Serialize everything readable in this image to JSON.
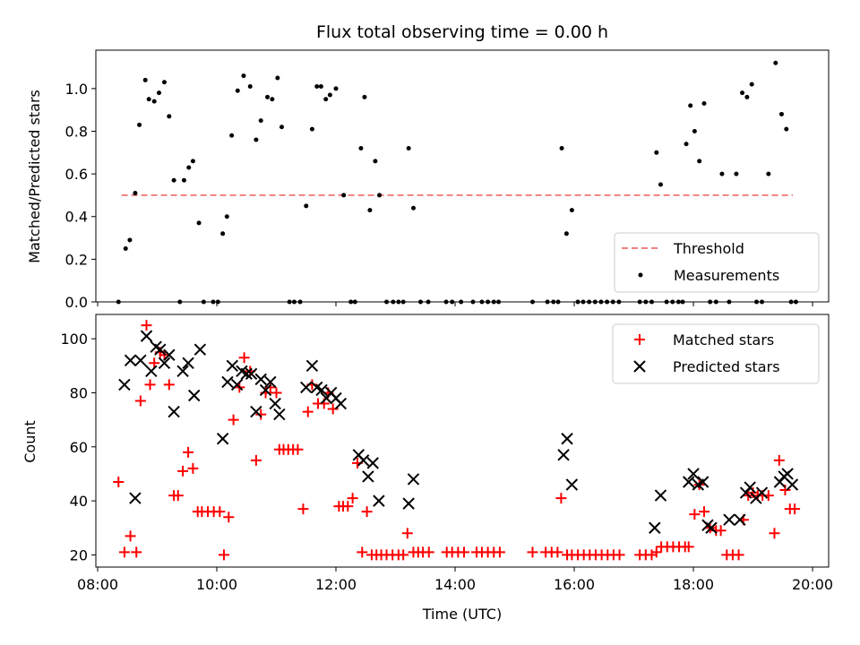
{
  "chart_data": [
    {
      "type": "scatter",
      "title": "Flux total observing time = 0.00 h",
      "ylabel": "Matched/Predicted stars",
      "xlabel": "",
      "ylim": [
        0,
        1.18
      ],
      "yticks": [
        0.0,
        0.2,
        0.4,
        0.6,
        0.8,
        1.0
      ],
      "yticklabels": [
        "0.0",
        "0.2",
        "0.4",
        "0.6",
        "0.8",
        "1.0"
      ],
      "xlim": [
        7.97,
        20.27
      ],
      "grid": false,
      "legend_position": "lower right",
      "legend": [
        "Threshold",
        "Measurements"
      ],
      "threshold": {
        "name": "Threshold",
        "y": 0.5,
        "x": [
          8.4,
          19.67
        ],
        "color": "#f08080",
        "style": "dashed"
      },
      "series": [
        {
          "name": "Measurements",
          "color": "#000000",
          "marker": "dot",
          "x": [
            8.35,
            8.47,
            8.54,
            8.63,
            8.7,
            8.8,
            8.86,
            8.95,
            9.03,
            9.12,
            9.2,
            9.28,
            9.38,
            9.45,
            9.53,
            9.6,
            9.7,
            9.78,
            9.94,
            10.02,
            10.1,
            10.17,
            10.25,
            10.35,
            10.45,
            10.56,
            10.66,
            10.74,
            10.85,
            10.93,
            11.02,
            11.09,
            11.22,
            11.3,
            11.4,
            11.5,
            11.6,
            11.68,
            11.75,
            11.83,
            11.9,
            12.0,
            12.13,
            12.25,
            12.32,
            12.42,
            12.48,
            12.57,
            12.66,
            12.73,
            12.85,
            12.96,
            13.05,
            13.13,
            13.22,
            13.3,
            13.42,
            13.55,
            13.85,
            13.95,
            14.1,
            14.3,
            14.45,
            14.55,
            14.65,
            14.73,
            15.3,
            15.55,
            15.65,
            15.73,
            15.79,
            15.87,
            15.96,
            16.06,
            16.15,
            16.25,
            16.35,
            16.45,
            16.55,
            16.65,
            16.75,
            17.1,
            17.2,
            17.3,
            17.38,
            17.45,
            17.55,
            17.65,
            17.75,
            17.82,
            17.88,
            17.95,
            18.02,
            18.1,
            18.18,
            18.28,
            18.38,
            18.48,
            18.6,
            18.72,
            18.82,
            18.9,
            18.98,
            19.06,
            19.15,
            19.26,
            19.38,
            19.48,
            19.56,
            19.64,
            19.72
          ],
          "y": [
            0.0,
            0.25,
            0.29,
            0.51,
            0.83,
            1.04,
            0.95,
            0.94,
            0.98,
            1.03,
            0.87,
            0.57,
            0.0,
            0.57,
            0.63,
            0.66,
            0.37,
            0.0,
            0.0,
            0.0,
            0.32,
            0.4,
            0.78,
            0.99,
            1.06,
            1.01,
            0.76,
            0.85,
            0.96,
            0.95,
            1.05,
            0.82,
            0.0,
            0.0,
            0.0,
            0.45,
            0.81,
            1.01,
            1.01,
            0.95,
            0.97,
            1.0,
            0.5,
            0.0,
            0.0,
            0.72,
            0.96,
            0.43,
            0.66,
            0.5,
            0.0,
            0.0,
            0.0,
            0.0,
            0.72,
            0.44,
            0.0,
            0.0,
            0.0,
            0.0,
            0.0,
            0.0,
            0.0,
            0.0,
            0.0,
            0.0,
            0.0,
            0.0,
            0.0,
            0.0,
            0.72,
            0.32,
            0.43,
            0.0,
            0.0,
            0.0,
            0.0,
            0.0,
            0.0,
            0.0,
            0.0,
            0.0,
            0.0,
            0.0,
            0.7,
            0.55,
            0.0,
            0.0,
            0.0,
            0.0,
            0.74,
            0.92,
            0.8,
            0.66,
            0.93,
            0.0,
            0.0,
            0.6,
            0.0,
            0.6,
            0.98,
            0.96,
            1.02,
            0.0,
            0.0,
            0.6,
            1.12,
            0.88,
            0.81,
            0.0,
            0.0
          ]
        }
      ]
    },
    {
      "type": "scatter",
      "title": "",
      "xlabel": "Time (UTC)",
      "ylabel": "Count",
      "ylim": [
        15.5,
        109
      ],
      "yticks": [
        20,
        40,
        60,
        80,
        100
      ],
      "yticklabels": [
        "20",
        "40",
        "60",
        "80",
        "100"
      ],
      "xlim": [
        7.97,
        20.27
      ],
      "xticks": [
        8,
        10,
        12,
        14,
        16,
        18,
        20
      ],
      "xticklabels": [
        "08:00",
        "10:00",
        "12:00",
        "14:00",
        "16:00",
        "18:00",
        "20:00"
      ],
      "grid": false,
      "legend_position": "top right",
      "legend": [
        "Matched stars",
        "Predicted stars"
      ],
      "series": [
        {
          "name": "Matched stars",
          "color": "#ff0000",
          "marker": "plus",
          "x": [
            8.35,
            8.45,
            8.55,
            8.65,
            8.72,
            8.82,
            8.88,
            8.95,
            9.05,
            9.12,
            9.2,
            9.28,
            9.35,
            9.43,
            9.52,
            9.6,
            9.68,
            9.75,
            9.85,
            9.95,
            10.05,
            10.12,
            10.2,
            10.28,
            10.38,
            10.46,
            10.56,
            10.66,
            10.74,
            10.82,
            10.9,
            11.0,
            11.05,
            11.12,
            11.2,
            11.28,
            11.36,
            11.45,
            11.53,
            11.6,
            11.7,
            11.8,
            11.87,
            11.95,
            12.05,
            12.12,
            12.2,
            12.28,
            12.36,
            12.44,
            12.52,
            12.6,
            12.68,
            12.76,
            12.85,
            12.95,
            13.05,
            13.13,
            13.2,
            13.3,
            13.38,
            13.46,
            13.56,
            13.86,
            13.95,
            14.05,
            14.15,
            14.36,
            14.45,
            14.55,
            14.65,
            14.75,
            15.3,
            15.52,
            15.62,
            15.72,
            15.78,
            15.88,
            15.96,
            16.06,
            16.16,
            16.26,
            16.36,
            16.46,
            16.56,
            16.66,
            16.76,
            17.1,
            17.2,
            17.3,
            17.38,
            17.46,
            17.56,
            17.66,
            17.76,
            17.86,
            17.92,
            18.02,
            18.1,
            18.18,
            18.28,
            18.38,
            18.46,
            18.56,
            18.66,
            18.76,
            18.84,
            18.92,
            19.0,
            19.08,
            19.16,
            19.26,
            19.36,
            19.44,
            19.54,
            19.62,
            19.7
          ],
          "y": [
            47,
            21,
            27,
            21,
            77,
            105,
            83,
            91,
            95,
            94,
            83,
            42,
            42,
            51,
            58,
            52,
            36,
            36,
            36,
            36,
            36,
            20,
            34,
            70,
            82,
            93,
            88,
            55,
            72,
            80,
            82,
            80,
            59,
            59,
            59,
            59,
            59,
            37,
            73,
            83,
            76,
            76,
            80,
            74,
            38,
            38,
            38,
            41,
            54,
            21,
            36,
            20,
            20,
            20,
            20,
            20,
            20,
            20,
            28,
            21,
            21,
            21,
            21,
            21,
            21,
            21,
            21,
            21,
            21,
            21,
            21,
            21,
            21,
            21,
            21,
            21,
            41,
            20,
            20,
            20,
            20,
            20,
            20,
            20,
            20,
            20,
            20,
            20,
            20,
            20,
            21,
            23,
            23,
            23,
            23,
            23,
            23,
            35,
            46,
            36,
            30,
            29,
            29,
            20,
            20,
            20,
            33,
            42,
            43,
            42,
            42,
            42,
            28,
            55,
            44,
            37,
            37
          ]
        },
        {
          "name": "Predicted stars",
          "color": "#000000",
          "marker": "x",
          "x": [
            8.45,
            8.55,
            8.63,
            8.72,
            8.82,
            8.9,
            8.98,
            9.05,
            9.12,
            9.2,
            9.28,
            9.43,
            9.52,
            9.62,
            9.72,
            10.1,
            10.18,
            10.26,
            10.34,
            10.42,
            10.5,
            10.58,
            10.66,
            10.74,
            10.82,
            10.9,
            10.98,
            11.05,
            11.5,
            11.6,
            11.68,
            11.76,
            11.84,
            11.92,
            12.0,
            12.08,
            12.38,
            12.46,
            12.54,
            12.62,
            12.72,
            13.22,
            13.3,
            15.82,
            15.88,
            15.96,
            17.35,
            17.45,
            17.92,
            18.0,
            18.08,
            18.16,
            18.24,
            18.3,
            18.6,
            18.78,
            18.88,
            18.95,
            19.05,
            19.15,
            19.45,
            19.52,
            19.58,
            19.66
          ],
          "y": [
            83,
            92,
            41,
            92,
            101,
            88,
            97,
            96,
            91,
            94,
            73,
            88,
            91,
            79,
            96,
            63,
            84,
            90,
            83,
            88,
            87,
            87,
            73,
            85,
            81,
            84,
            76,
            72,
            82,
            90,
            82,
            81,
            78,
            80,
            78,
            76,
            57,
            55,
            49,
            54,
            40,
            39,
            48,
            57,
            63,
            46,
            30,
            42,
            47,
            50,
            46,
            47,
            31,
            30,
            33,
            33,
            43,
            45,
            41,
            43,
            47,
            49,
            50,
            46
          ]
        }
      ]
    }
  ]
}
